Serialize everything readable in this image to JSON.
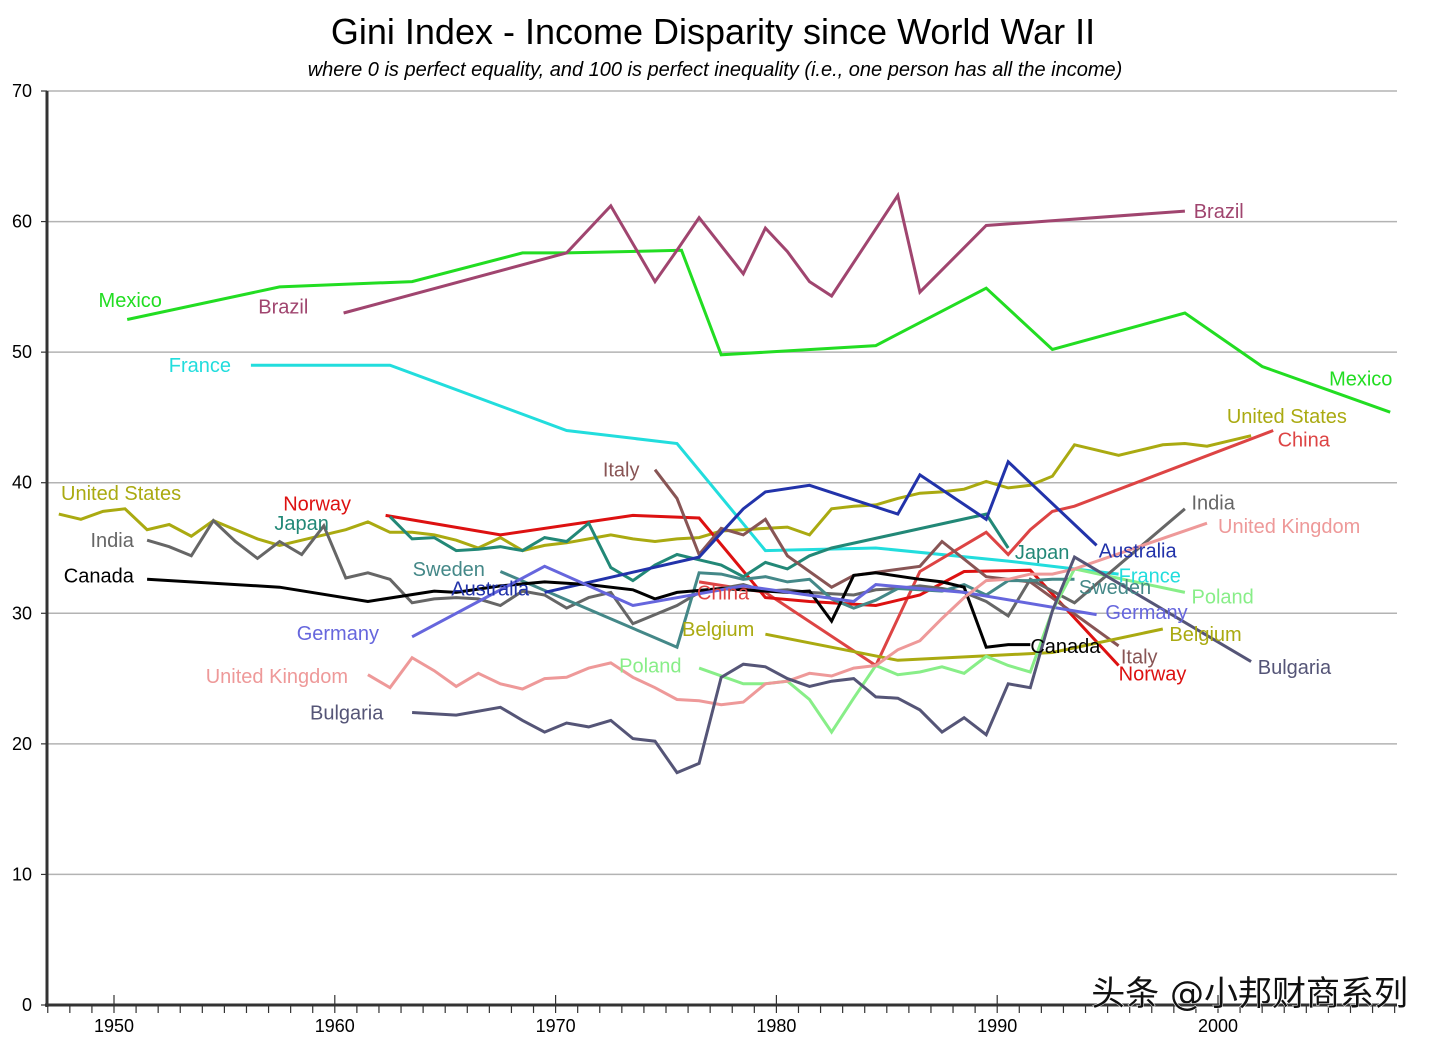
{
  "chart_data": {
    "type": "line",
    "title": "Gini Index - Income Disparity since World War II",
    "subtitle": "where 0 is perfect equality, and 100 is perfect inequality (i.e., one person has all the income)",
    "xlabel": "",
    "ylabel": "",
    "xlim": [
      1947,
      2008
    ],
    "ylim": [
      0,
      70
    ],
    "y_ticks": [
      0,
      10,
      20,
      30,
      40,
      50,
      60,
      70
    ],
    "x_ticks": [
      1950,
      1960,
      1970,
      1980,
      1990,
      2000
    ],
    "grid": true,
    "legend": "inline-labels",
    "watermark": "头条 @小邦财商系列",
    "series": [
      {
        "name": "Mexico",
        "color": "#22dd22",
        "x": [
          1950.6,
          1957.5,
          1963.5,
          1968.5,
          1970.5,
          1975.7,
          1977.5,
          1984.5,
          1989.5,
          1992.5,
          1998.5,
          2002,
          2007.8
        ],
        "y": [
          52.5,
          55.0,
          55.4,
          57.6,
          57.6,
          57.8,
          49.8,
          50.5,
          54.9,
          50.2,
          53.0,
          48.9,
          45.4
        ],
        "labels": [
          {
            "text": "Mexico",
            "x": 1949.3,
            "y": 54.0,
            "anchor": "middle-left"
          },
          {
            "text": "Mexico",
            "x": 2007.9,
            "y": 48.0,
            "anchor": "end"
          }
        ]
      },
      {
        "name": "Brazil",
        "color": "#a0456f",
        "x": [
          1960.4,
          1970.5,
          1972.5,
          1974.5,
          1975.5,
          1976.5,
          1978.5,
          1979.5,
          1980.5,
          1981.5,
          1982.5,
          1985.5,
          1986.5,
          1989.5,
          1998.5
        ],
        "y": [
          53.0,
          57.6,
          61.2,
          55.4,
          57.8,
          60.3,
          56.0,
          59.5,
          57.7,
          55.4,
          54.3,
          62.0,
          54.6,
          59.7,
          60.8
        ],
        "labels": [
          {
            "text": "Brazil",
            "x": 1958.8,
            "y": 53.5,
            "anchor": "end"
          },
          {
            "text": "Brazil",
            "x": 1998.9,
            "y": 60.8,
            "anchor": "start"
          }
        ]
      },
      {
        "name": "France",
        "color": "#22dddd",
        "x": [
          1956.2,
          1962.5,
          1970.5,
          1975.5,
          1979.5,
          1984.5,
          1990.5,
          1995.5
        ],
        "y": [
          49.0,
          49.0,
          44.0,
          43.0,
          34.8,
          35.0,
          34.0,
          33.0
        ],
        "labels": [
          {
            "text": "France",
            "x": 1955.3,
            "y": 49.0,
            "anchor": "end"
          },
          {
            "text": "France",
            "x": 1995.5,
            "y": 32.9,
            "anchor": "start"
          }
        ]
      },
      {
        "name": "United States",
        "color": "#aaaa11",
        "x": [
          1947.5,
          1948.5,
          1949.5,
          1950.5,
          1951.5,
          1952.5,
          1953.5,
          1954.5,
          1955.5,
          1956.5,
          1957.5,
          1958.5,
          1959.5,
          1960.5,
          1961.5,
          1962.5,
          1963.5,
          1964.5,
          1965.5,
          1966.5,
          1967.5,
          1968.5,
          1969.5,
          1970.5,
          1971.5,
          1972.5,
          1973.5,
          1974.5,
          1975.5,
          1976.5,
          1977.5,
          1978.5,
          1979.5,
          1980.5,
          1981.5,
          1982.5,
          1983.5,
          1984.5,
          1985.5,
          1986.5,
          1987.5,
          1988.5,
          1989.5,
          1990.5,
          1991.5,
          1992.5,
          1993.5,
          1994.5,
          1995.5,
          1996.5,
          1997.5,
          1998.5,
          1999.5,
          2000.5,
          2001.5
        ],
        "y": [
          37.6,
          37.2,
          37.8,
          38.0,
          36.4,
          36.8,
          35.9,
          37.1,
          36.4,
          35.7,
          35.2,
          35.6,
          36.0,
          36.4,
          37.0,
          36.2,
          36.2,
          36.0,
          35.6,
          35.0,
          35.8,
          34.8,
          35.2,
          35.4,
          35.7,
          36.0,
          35.7,
          35.5,
          35.7,
          35.8,
          36.3,
          36.4,
          36.5,
          36.6,
          36.0,
          38.0,
          38.2,
          38.3,
          38.8,
          39.2,
          39.3,
          39.5,
          40.1,
          39.6,
          39.8,
          40.5,
          42.9,
          42.5,
          42.1,
          42.5,
          42.9,
          43.0,
          42.8,
          43.2,
          43.6
        ],
        "labels": [
          {
            "text": "United States",
            "x": 1947.6,
            "y": 39.2,
            "anchor": "start"
          },
          {
            "text": "United States",
            "x": 2000.4,
            "y": 45.1,
            "anchor": "start"
          }
        ]
      },
      {
        "name": "China",
        "color": "#dd4444",
        "x": [
          1976.5,
          1979.5,
          1984.5,
          1986.5,
          1989.5,
          1990.5,
          1991.5,
          1992.5,
          1993.5,
          2002.5
        ],
        "y": [
          32.4,
          31.6,
          26.0,
          33.2,
          36.2,
          34.5,
          36.4,
          37.8,
          38.2,
          44.0
        ],
        "labels": [
          {
            "text": "China",
            "x": 1976.4,
            "y": 31.6,
            "anchor": "start"
          },
          {
            "text": "China",
            "x": 2002.7,
            "y": 43.3,
            "anchor": "start"
          }
        ]
      },
      {
        "name": "Norway",
        "color": "#dd1111",
        "x": [
          1962.3,
          1967.5,
          1973.5,
          1976.5,
          1979.5,
          1981.5,
          1984.5,
          1986.5,
          1988.5,
          1991.5,
          1995.5
        ],
        "y": [
          37.5,
          36.0,
          37.5,
          37.3,
          31.2,
          30.9,
          30.6,
          31.4,
          33.2,
          33.3,
          26.0
        ],
        "labels": [
          {
            "text": "Norway",
            "x": 1959.2,
            "y": 38.4,
            "anchor": "middle"
          },
          {
            "text": "Norway",
            "x": 1995.5,
            "y": 25.4,
            "anchor": "start"
          }
        ]
      },
      {
        "name": "Japan",
        "color": "#228877",
        "x": [
          1962.5,
          1963.5,
          1964.5,
          1965.5,
          1966.5,
          1967.5,
          1968.5,
          1969.5,
          1970.5,
          1971.5,
          1972.5,
          1973.5,
          1974.5,
          1975.5,
          1976.5,
          1977.5,
          1978.5,
          1979.5,
          1980.5,
          1981.5,
          1982.5,
          1989.5,
          1990.5
        ],
        "y": [
          37.4,
          35.7,
          35.8,
          34.8,
          34.9,
          35.1,
          34.8,
          35.8,
          35.5,
          36.9,
          33.5,
          32.5,
          33.7,
          34.5,
          34.1,
          33.7,
          32.8,
          33.9,
          33.4,
          34.4,
          35.0,
          37.6,
          35.0
        ],
        "labels": [
          {
            "text": "Japan",
            "x": 1958.5,
            "y": 36.9,
            "anchor": "middle"
          },
          {
            "text": "Japan",
            "x": 1990.8,
            "y": 34.7,
            "anchor": "start"
          }
        ]
      },
      {
        "name": "Italy",
        "color": "#885555",
        "x": [
          1974.5,
          1975.5,
          1976.5,
          1977.5,
          1978.5,
          1979.5,
          1980.5,
          1982.5,
          1983.5,
          1986.5,
          1987.5,
          1989.5,
          1991.5,
          1995.5
        ],
        "y": [
          41.0,
          38.8,
          34.5,
          36.5,
          36.0,
          37.2,
          34.4,
          32.0,
          32.9,
          33.6,
          35.5,
          32.8,
          32.4,
          27.5
        ],
        "labels": [
          {
            "text": "Italy",
            "x": 1973.8,
            "y": 41.0,
            "anchor": "end"
          },
          {
            "text": "Italy",
            "x": 1995.6,
            "y": 26.7,
            "anchor": "start"
          }
        ]
      },
      {
        "name": "India",
        "color": "#666666",
        "x": [
          1951.5,
          1952.5,
          1953.5,
          1954.5,
          1955.5,
          1956.5,
          1957.5,
          1958.5,
          1959.5,
          1960.5,
          1961.5,
          1962.5,
          1963.5,
          1964.5,
          1965.5,
          1966.5,
          1967.5,
          1968.5,
          1969.5,
          1970.5,
          1971.5,
          1972.5,
          1973.5,
          1975.5,
          1976.5,
          1977.5,
          1978.5,
          1979.5,
          1980.5,
          1981.5,
          1982.5,
          1983.5,
          1984.5,
          1985.5,
          1986.5,
          1987.5,
          1988.5,
          1989.5,
          1990.5,
          1991.5,
          1993.5,
          1998.5
        ],
        "y": [
          35.6,
          35.1,
          34.4,
          37.1,
          35.5,
          34.2,
          35.5,
          34.5,
          36.7,
          32.7,
          33.1,
          32.6,
          30.8,
          31.1,
          31.2,
          31.1,
          30.6,
          31.7,
          31.4,
          30.4,
          31.2,
          31.6,
          29.2,
          30.6,
          31.6,
          31.9,
          32.2,
          31.7,
          31.8,
          31.6,
          31.5,
          31.4,
          31.8,
          31.9,
          32.1,
          31.9,
          31.6,
          30.9,
          29.8,
          32.6,
          30.8,
          38.0
        ],
        "labels": [
          {
            "text": "India",
            "x": 1950.9,
            "y": 35.6,
            "anchor": "end"
          },
          {
            "text": "India",
            "x": 1998.8,
            "y": 38.5,
            "anchor": "start"
          }
        ]
      },
      {
        "name": "Sweden",
        "color": "#448888",
        "x": [
          1967.5,
          1975.5,
          1976.5,
          1977.5,
          1978.5,
          1979.5,
          1980.5,
          1981.5,
          1982.5,
          1983.5,
          1984.5,
          1985.5,
          1986.5,
          1987.5,
          1988.5,
          1989.5,
          1990.5,
          1991.5,
          1992.5,
          1993.5
        ],
        "y": [
          33.2,
          27.4,
          33.1,
          33.0,
          32.6,
          32.8,
          32.4,
          32.6,
          31.1,
          30.4,
          31.0,
          31.9,
          31.8,
          31.7,
          32.2,
          31.4,
          32.5,
          32.5,
          32.6,
          32.6
        ],
        "labels": [
          {
            "text": "Sweden",
            "x": 1966.8,
            "y": 33.4,
            "anchor": "end"
          },
          {
            "text": "Sweden",
            "x": 1993.7,
            "y": 32.0,
            "anchor": "start"
          }
        ]
      },
      {
        "name": "Australia",
        "color": "#2233aa",
        "x": [
          1969.5,
          1976.5,
          1978.5,
          1979.5,
          1981.5,
          1985.5,
          1986.5,
          1989.5,
          1990.5,
          1994.5
        ],
        "y": [
          31.6,
          34.3,
          38.0,
          39.3,
          39.8,
          37.6,
          40.6,
          37.2,
          41.6,
          35.2
        ],
        "labels": [
          {
            "text": "Australia",
            "x": 1968.8,
            "y": 31.9,
            "anchor": "end"
          },
          {
            "text": "Australia",
            "x": 1994.6,
            "y": 34.8,
            "anchor": "start"
          }
        ]
      },
      {
        "name": "Canada",
        "color": "#000000",
        "x": [
          1951.5,
          1957.5,
          1961.5,
          1964.5,
          1965.5,
          1967.5,
          1969.5,
          1971.5,
          1973.5,
          1974.5,
          1975.5,
          1977.5,
          1978.5,
          1980.5,
          1981.5,
          1982.5,
          1983.5,
          1984.5,
          1986.5,
          1987.5,
          1988.5,
          1989.5,
          1990.5,
          1991.5
        ],
        "y": [
          32.6,
          32.0,
          30.9,
          31.7,
          31.6,
          32.1,
          32.4,
          32.2,
          31.8,
          31.1,
          31.6,
          31.9,
          31.8,
          31.6,
          31.7,
          29.4,
          32.9,
          33.1,
          32.6,
          32.4,
          32.0,
          27.4,
          27.6,
          27.6
        ],
        "labels": [
          {
            "text": "Canada",
            "x": 1950.9,
            "y": 32.9,
            "anchor": "end"
          },
          {
            "text": "Canada",
            "x": 1991.5,
            "y": 27.5,
            "anchor": "start"
          }
        ]
      },
      {
        "name": "Germany",
        "color": "#6666dd",
        "x": [
          1963.5,
          1969.5,
          1973.5,
          1978.5,
          1983.5,
          1984.5,
          1986.5,
          1988.5,
          1994.5
        ],
        "y": [
          28.2,
          33.6,
          30.6,
          32.1,
          30.9,
          32.2,
          31.9,
          31.6,
          29.9
        ],
        "labels": [
          {
            "text": "Germany",
            "x": 1962.0,
            "y": 28.5,
            "anchor": "end"
          },
          {
            "text": "Germany",
            "x": 1994.9,
            "y": 30.1,
            "anchor": "start"
          }
        ]
      },
      {
        "name": "Belgium",
        "color": "#aaaa11",
        "x": [
          1979.5,
          1985.5,
          1992.5,
          1997.5
        ],
        "y": [
          28.4,
          26.4,
          27.0,
          28.8
        ],
        "labels": [
          {
            "text": "Belgium",
            "x": 1979.0,
            "y": 28.8,
            "anchor": "end"
          },
          {
            "text": "Belgium",
            "x": 1997.8,
            "y": 28.4,
            "anchor": "start"
          }
        ]
      },
      {
        "name": "Poland",
        "color": "#88ee88",
        "x": [
          1976.5,
          1978.5,
          1979.5,
          1980.5,
          1981.5,
          1982.5,
          1983.5,
          1984.5,
          1985.5,
          1986.5,
          1987.5,
          1988.5,
          1989.5,
          1990.5,
          1991.5,
          1992.5,
          1993.5,
          1998.5
        ],
        "y": [
          25.8,
          24.6,
          24.6,
          24.8,
          23.4,
          20.9,
          23.5,
          26.0,
          25.3,
          25.5,
          25.9,
          25.4,
          26.7,
          26.0,
          25.5,
          30.2,
          33.4,
          31.6
        ],
        "labels": [
          {
            "text": "Poland",
            "x": 1975.7,
            "y": 26.0,
            "anchor": "end"
          },
          {
            "text": "Poland",
            "x": 1998.8,
            "y": 31.3,
            "anchor": "start"
          }
        ]
      },
      {
        "name": "United Kingdom",
        "color": "#ee9999",
        "x": [
          1961.5,
          1962.5,
          1963.5,
          1964.5,
          1965.5,
          1966.5,
          1967.5,
          1968.5,
          1969.5,
          1970.5,
          1971.5,
          1972.5,
          1973.5,
          1974.5,
          1975.5,
          1976.5,
          1977.5,
          1978.5,
          1979.5,
          1980.5,
          1981.5,
          1982.5,
          1983.5,
          1984.5,
          1985.5,
          1986.5,
          1987.5,
          1988.5,
          1989.5,
          1990.5,
          1991.5,
          1992.5,
          1993.5,
          1999.5
        ],
        "y": [
          25.3,
          24.3,
          26.6,
          25.6,
          24.4,
          25.4,
          24.6,
          24.2,
          25.0,
          25.1,
          25.8,
          26.2,
          25.1,
          24.3,
          23.4,
          23.3,
          23.0,
          23.2,
          24.6,
          24.8,
          25.4,
          25.2,
          25.8,
          26.0,
          27.2,
          27.9,
          29.6,
          31.2,
          32.5,
          32.6,
          33.0,
          33.0,
          33.4,
          36.9
        ],
        "labels": [
          {
            "text": "United Kingdom",
            "x": 1960.6,
            "y": 25.2,
            "anchor": "end"
          },
          {
            "text": "United Kingdom",
            "x": 2000.0,
            "y": 36.7,
            "anchor": "start"
          }
        ]
      },
      {
        "name": "Bulgaria",
        "color": "#555577",
        "x": [
          1963.5,
          1965.5,
          1967.5,
          1968.5,
          1969.5,
          1970.5,
          1971.5,
          1972.5,
          1973.5,
          1974.5,
          1975.5,
          1976.5,
          1977.5,
          1978.5,
          1979.5,
          1980.5,
          1981.5,
          1982.5,
          1983.5,
          1984.5,
          1985.5,
          1986.5,
          1987.5,
          1988.5,
          1989.5,
          1990.5,
          1991.5,
          1992.5,
          1993.5,
          2001.5
        ],
        "y": [
          22.4,
          22.2,
          22.8,
          21.8,
          20.9,
          21.6,
          21.3,
          21.8,
          20.4,
          20.2,
          17.8,
          18.5,
          25.1,
          26.1,
          25.9,
          25.0,
          24.4,
          24.8,
          25.0,
          23.6,
          23.5,
          22.6,
          20.9,
          22.0,
          20.7,
          24.6,
          24.3,
          30.2,
          34.3,
          26.3
        ],
        "labels": [
          {
            "text": "Bulgaria",
            "x": 1962.2,
            "y": 22.4,
            "anchor": "end"
          },
          {
            "text": "Bulgaria",
            "x": 2001.8,
            "y": 25.9,
            "anchor": "start"
          }
        ]
      }
    ]
  }
}
